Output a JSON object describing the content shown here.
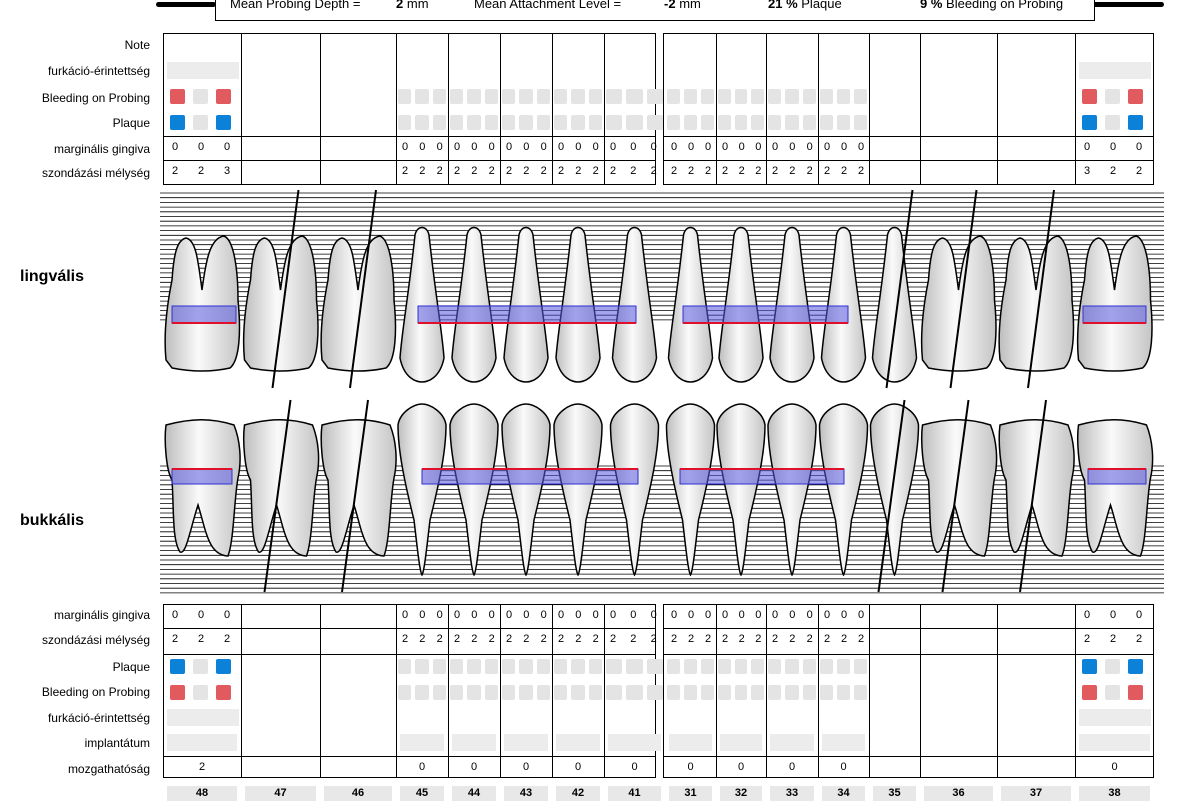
{
  "summary": {
    "mean_probing_depth_label": "Mean Probing Depth =",
    "mean_probing_depth_value": "2",
    "mean_probing_depth_unit": "mm",
    "mean_attachment_label": "Mean Attachment Level =",
    "mean_attachment_value": "-2",
    "mean_attachment_unit": "mm",
    "plaque_value": "21 %",
    "plaque_label": "Plaque",
    "bleeding_value": "9 %",
    "bleeding_label": "Bleeding on Probing"
  },
  "upper_labels": {
    "note": "Note",
    "furcation": "furkáció-érintettség",
    "bleeding": "Bleeding on Probing",
    "plaque": "Plaque",
    "gingival_margin": "marginális gingiva",
    "probing_depth": "szondázási mélység"
  },
  "side_labels": {
    "lingual": "lingvális",
    "buccal": "bukkális"
  },
  "lower_labels": {
    "gingival_margin": "marginális gingiva",
    "probing_depth": "szondázási mélység",
    "plaque": "Plaque",
    "bleeding": "Bleeding on Probing",
    "furcation": "furkáció-érintettség",
    "implant": "implantátum",
    "mobility": "mozgathatóság"
  },
  "teeth": [
    "48",
    "47",
    "46",
    "45",
    "44",
    "43",
    "42",
    "41",
    "31",
    "32",
    "33",
    "34",
    "35",
    "36",
    "37",
    "38"
  ],
  "lingual": {
    "gingival_margin": [
      "0 0 0",
      "",
      "",
      "0 0 0",
      "0 0 0",
      "0 0 0",
      "0 0 0",
      "0 0 0",
      "0 0 0",
      "0 0 0",
      "0 0 0",
      "0 0 0",
      "",
      "",
      "",
      "0 0 0"
    ],
    "probing_depth": [
      "2 2 3",
      "",
      "",
      "2 2 2",
      "2 2 2",
      "2 2 2",
      "2 2 2",
      "2 2 2",
      "2 2 2",
      "2 2 2",
      "2 2 2",
      "2 2 2",
      "",
      "",
      "",
      "3 2 2"
    ]
  },
  "buccal": {
    "gingival_margin": [
      "0 0 0",
      "",
      "",
      "0 0 0",
      "0 0 0",
      "0 0 0",
      "0 0 0",
      "0 0 0",
      "0 0 0",
      "0 0 0",
      "0 0 0",
      "0 0 0",
      "",
      "",
      "",
      "0 0 0"
    ],
    "probing_depth": [
      "2 2 2",
      "",
      "",
      "2 2 2",
      "2 2 2",
      "2 2 2",
      "2 2 2",
      "2 2 2",
      "2 2 2",
      "2 2 2",
      "2 2 2",
      "2 2 2",
      "",
      "",
      "",
      "2 2 2"
    ],
    "mobility": [
      "2",
      "",
      "",
      "0",
      "0",
      "0",
      "0",
      "0",
      "0",
      "0",
      "0",
      "0",
      "",
      "",
      "",
      "0"
    ]
  },
  "colors": {
    "bleeding": "#e05a5e",
    "plaque": "#0b82d8",
    "empty": "#e4e4e4",
    "gingiva_line": "#e0102a",
    "pocket_fill": "#5a5ae0"
  }
}
